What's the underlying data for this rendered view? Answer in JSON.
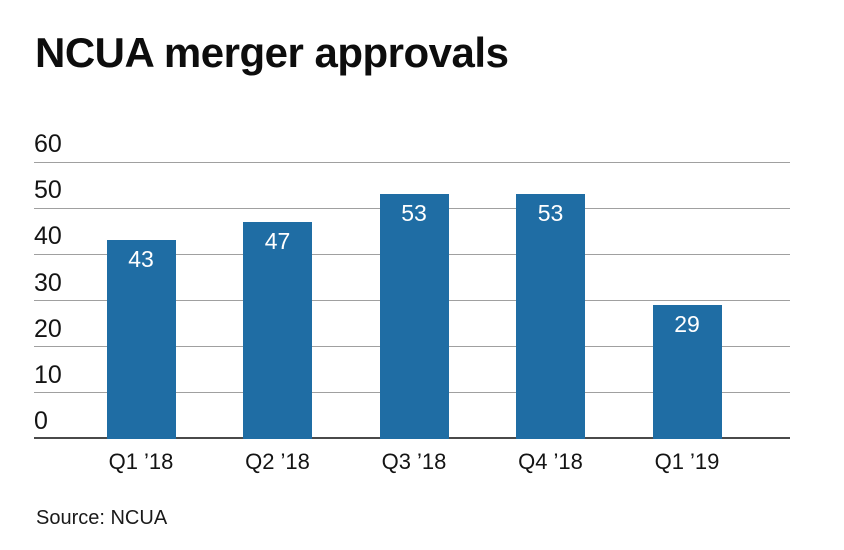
{
  "title": "NCUA merger approvals",
  "source": "Source: NCUA",
  "colors": {
    "bar": "#1f6da4",
    "grid": "#a0a0a0",
    "baseline": "#4a4a4a",
    "text": "#141414",
    "value_label": "#ffffff",
    "background": "#ffffff"
  },
  "chart_data": {
    "type": "bar",
    "categories": [
      "Q1 ’18",
      "Q2 ’18",
      "Q3 ’18",
      "Q4 ’18",
      "Q1 ’19"
    ],
    "values": [
      43,
      47,
      53,
      53,
      29
    ],
    "title": "NCUA merger approvals",
    "xlabel": "",
    "ylabel": "",
    "ylim": [
      0,
      60
    ],
    "yticks": [
      0,
      10,
      20,
      30,
      40,
      50,
      60
    ],
    "grid": true,
    "legend": "none",
    "value_labels": "inside-top",
    "source": "Source: NCUA"
  }
}
